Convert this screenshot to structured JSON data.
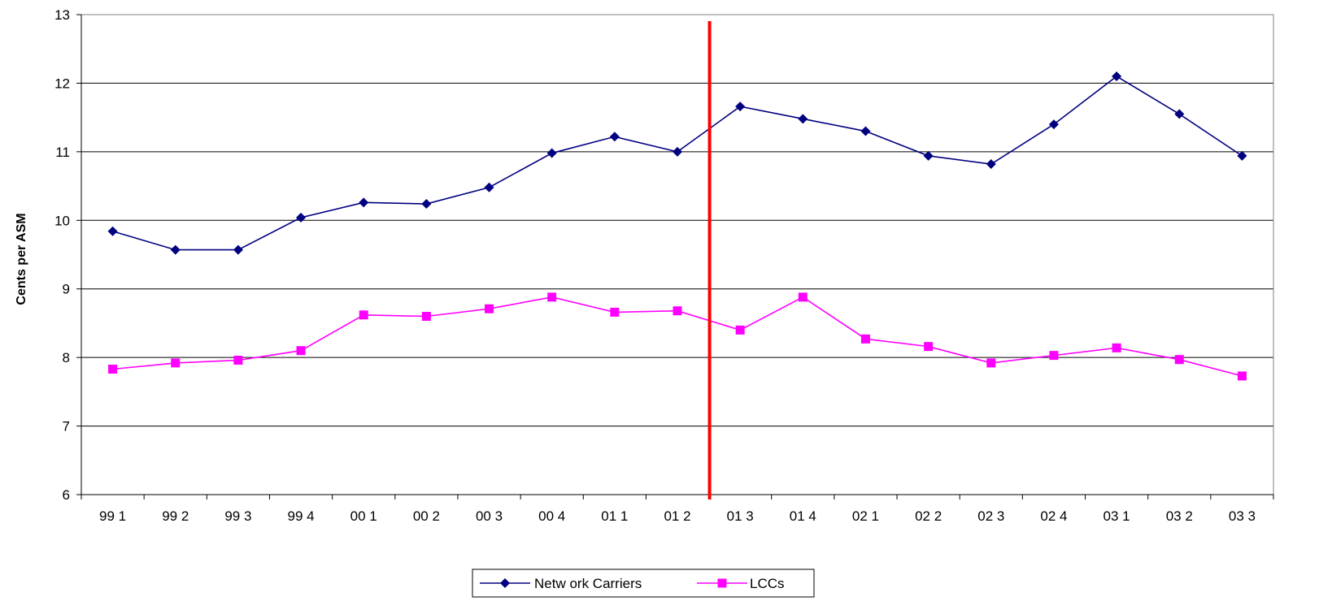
{
  "chart_data": {
    "type": "line",
    "title": "",
    "xlabel": "",
    "ylabel": "Cents per ASM",
    "ylim": [
      6,
      13
    ],
    "yticks": [
      6,
      7,
      8,
      9,
      10,
      11,
      12,
      13
    ],
    "grid": true,
    "legend_position": "bottom",
    "categories": [
      "99 1",
      "99 2",
      "99 3",
      "99 4",
      "00 1",
      "00 2",
      "00 3",
      "00 4",
      "01 1",
      "01 2",
      "01 3",
      "01 4",
      "02 1",
      "02 2",
      "02 3",
      "02 4",
      "03 1",
      "03 2",
      "03 3"
    ],
    "series": [
      {
        "name": "Netw ork Carriers",
        "color": "#000080",
        "marker": "diamond",
        "values": [
          9.84,
          9.57,
          9.57,
          10.04,
          10.26,
          10.24,
          10.48,
          10.98,
          11.22,
          11.0,
          11.66,
          11.48,
          11.3,
          10.94,
          10.82,
          11.4,
          12.1,
          11.55,
          10.94
        ]
      },
      {
        "name": "LCCs",
        "color": "#ff00ff",
        "marker": "square",
        "values": [
          7.83,
          7.92,
          7.96,
          8.1,
          8.62,
          8.6,
          8.71,
          8.88,
          8.66,
          8.68,
          8.4,
          8.88,
          8.27,
          8.16,
          7.92,
          8.03,
          8.14,
          7.97,
          7.73
        ]
      }
    ],
    "annotations": [
      {
        "type": "vertical-line",
        "x_between": [
          "01 2",
          "01 3"
        ],
        "color": "#ff0000"
      }
    ]
  }
}
